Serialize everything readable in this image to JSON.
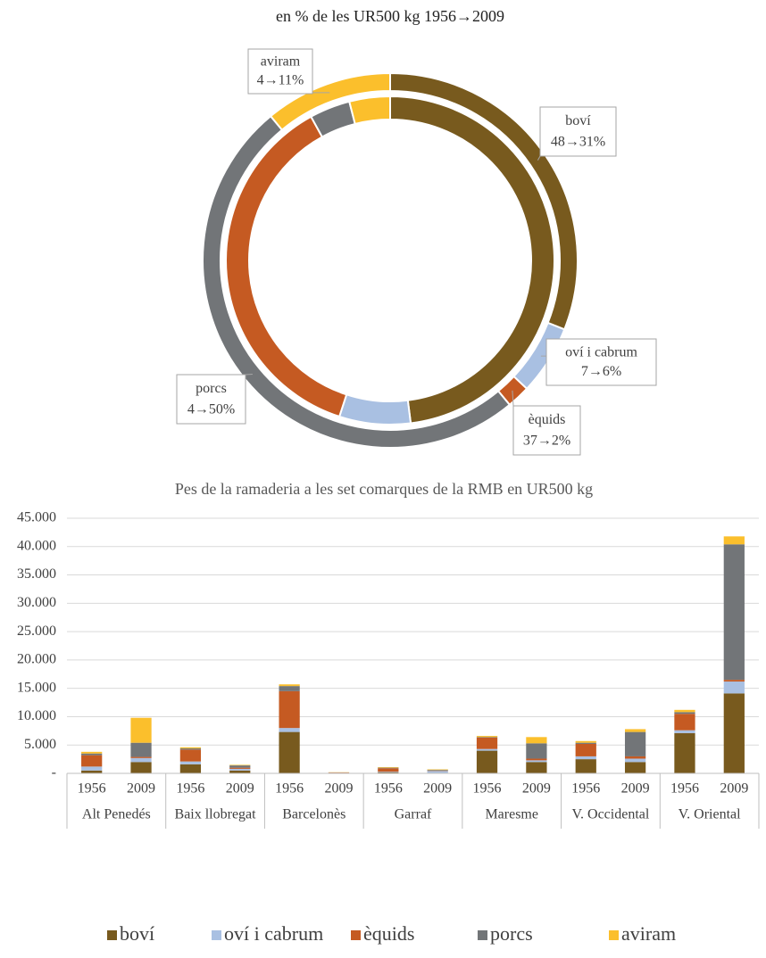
{
  "chart_data": [
    {
      "type": "doughnut",
      "title": "en % de les UR500 kg 1956→2009",
      "categories": [
        "boví",
        "oví i cabrum",
        "èquids",
        "porcs",
        "aviram"
      ],
      "colors": [
        "#785a1e",
        "#a9c0e2",
        "#c55a22",
        "#727578",
        "#fbbf2c"
      ],
      "series": [
        {
          "values": [
            48,
            7,
            37,
            4,
            4
          ]
        },
        {
          "values": [
            31,
            6,
            2,
            50,
            11
          ]
        }
      ],
      "value_labels": [
        "48→31%",
        "7→6%",
        "37→2%",
        "4→50%",
        "4→11%"
      ]
    },
    {
      "type": "bar",
      "stacked": true,
      "title": "Pes de la ramaderia a les set comarques de la RMB en UR500 kg",
      "categories": [
        "1956",
        "2009",
        "1956",
        "2009",
        "1956",
        "2009",
        "1956",
        "2009",
        "1956",
        "2009",
        "1956",
        "2009",
        "1956",
        "2009"
      ],
      "groups": [
        "Alt Penedés",
        "Baix llobregat",
        "Barcelonès",
        "Garraf",
        "Maresme",
        "V. Occidental",
        "V. Oriental"
      ],
      "series": [
        {
          "name": "boví",
          "color": "#785a1e",
          "values": [
            500,
            2000,
            1600,
            500,
            7300,
            50,
            200,
            100,
            4000,
            2000,
            2500,
            2000,
            7100,
            14100
          ]
        },
        {
          "name": "oví i cabrum",
          "color": "#a9c0e2",
          "values": [
            700,
            700,
            500,
            300,
            700,
            50,
            100,
            300,
            300,
            300,
            500,
            600,
            500,
            2100
          ]
        },
        {
          "name": "èquids",
          "color": "#c55a22",
          "values": [
            2000,
            200,
            2100,
            200,
            6500,
            50,
            600,
            50,
            2000,
            300,
            2200,
            400,
            2900,
            300
          ]
        },
        {
          "name": "porcs",
          "color": "#727578",
          "values": [
            300,
            2500,
            200,
            400,
            900,
            20,
            100,
            150,
            100,
            2700,
            200,
            4300,
            300,
            23900
          ]
        },
        {
          "name": "aviram",
          "color": "#fbbf2c",
          "values": [
            300,
            4400,
            200,
            100,
            300,
            30,
            100,
            100,
            200,
            1100,
            300,
            500,
            400,
            1400
          ]
        }
      ],
      "ylim": [
        0,
        45000
      ],
      "yticks": [
        {
          "value": 0,
          "label": "-"
        },
        {
          "value": 5000,
          "label": "5.000"
        },
        {
          "value": 10000,
          "label": "10.000"
        },
        {
          "value": 15000,
          "label": "15.000"
        },
        {
          "value": 20000,
          "label": "20.000"
        },
        {
          "value": 25000,
          "label": "25.000"
        },
        {
          "value": 30000,
          "label": "30.000"
        },
        {
          "value": 35000,
          "label": "35.000"
        },
        {
          "value": 40000,
          "label": "40.000"
        },
        {
          "value": 45000,
          "label": "45.000"
        }
      ],
      "grid": true,
      "legend": "bottom"
    }
  ]
}
